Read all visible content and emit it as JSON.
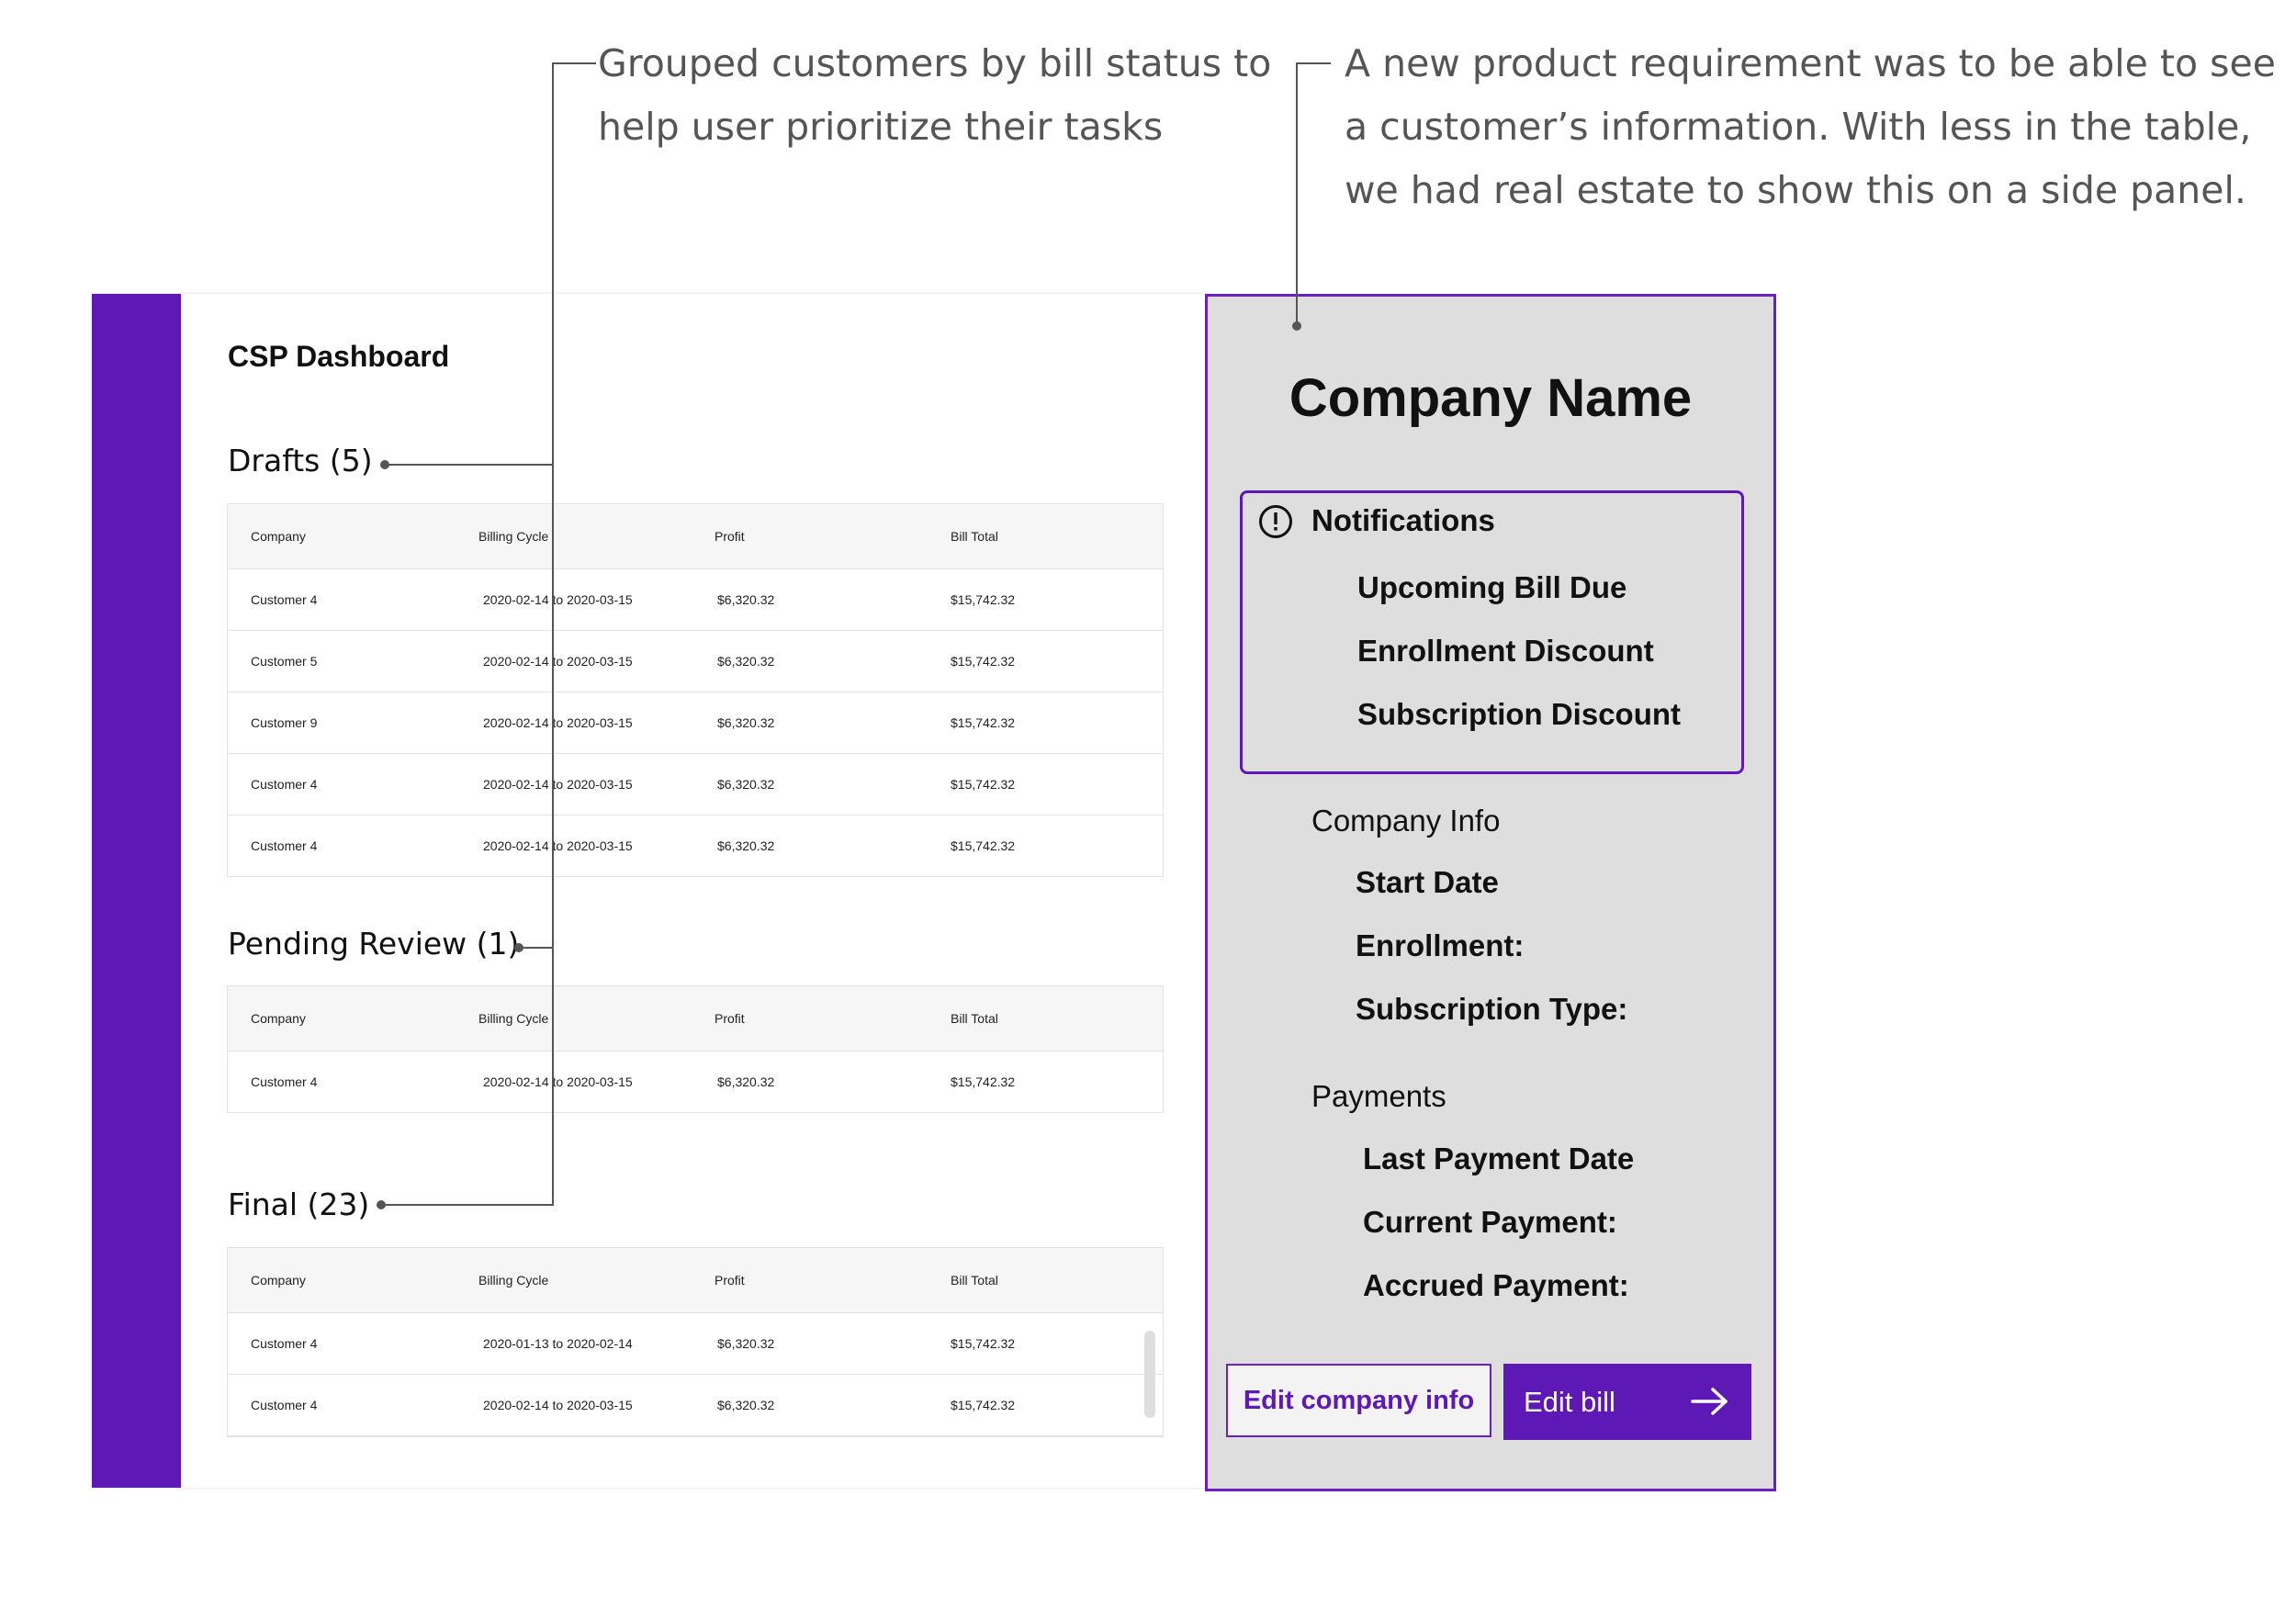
{
  "annotations": {
    "left_line1": "Grouped customers by bill status to",
    "left_line2": "help user prioritize their tasks",
    "right_line1": "A new product requirement was to be able to see",
    "right_line2": "a customer’s information. With less in the table,",
    "right_line3": "we had real estate to show this on a side panel."
  },
  "dashboard": {
    "title": "CSP Dashboard",
    "columns": [
      "Company",
      "Billing Cycle",
      "Profit",
      "Bill Total"
    ],
    "sections": [
      {
        "title": "Drafts (5)",
        "rows": [
          [
            "Customer 4",
            "2020-02-14 to 2020-03-15",
            "$6,320.32",
            "$15,742.32"
          ],
          [
            "Customer 5",
            "2020-02-14 to 2020-03-15",
            "$6,320.32",
            "$15,742.32"
          ],
          [
            "Customer 9",
            "2020-02-14 to 2020-03-15",
            "$6,320.32",
            "$15,742.32"
          ],
          [
            "Customer 4",
            "2020-02-14 to 2020-03-15",
            "$6,320.32",
            "$15,742.32"
          ],
          [
            "Customer 4",
            "2020-02-14 to 2020-03-15",
            "$6,320.32",
            "$15,742.32"
          ]
        ]
      },
      {
        "title": "Pending Review (1)",
        "rows": [
          [
            "Customer 4",
            "2020-02-14 to 2020-03-15",
            "$6,320.32",
            "$15,742.32"
          ]
        ]
      },
      {
        "title": "Final (23)",
        "rows": [
          [
            "Customer 4",
            "2020-01-13 to 2020-02-14",
            "$6,320.32",
            "$15,742.32"
          ],
          [
            "Customer 4",
            "2020-02-14 to 2020-03-15",
            "$6,320.32",
            "$15,742.32"
          ]
        ]
      }
    ]
  },
  "panel": {
    "title": "Company Name",
    "notifications_title": "Notifications",
    "notifications": [
      "Upcoming Bill Due",
      "Enrollment Discount",
      "Subscription Discount"
    ],
    "company_info_title": "Company Info",
    "company_info": [
      "Start Date",
      "Enrollment:",
      "Subscription Type:"
    ],
    "payments_title": "Payments",
    "payments": [
      "Last Payment Date",
      "Current Payment:",
      "Accrued Payment:"
    ],
    "edit_company_label": "Edit company info",
    "edit_bill_label": "Edit bill"
  },
  "colors": {
    "brand_purple": "#5e18b6",
    "panel_bg": "#dedede",
    "annotation_text": "#555555"
  },
  "icons": {
    "notification_icon": "exclamation-circle-icon",
    "edit_bill_icon": "arrow-right-icon"
  }
}
